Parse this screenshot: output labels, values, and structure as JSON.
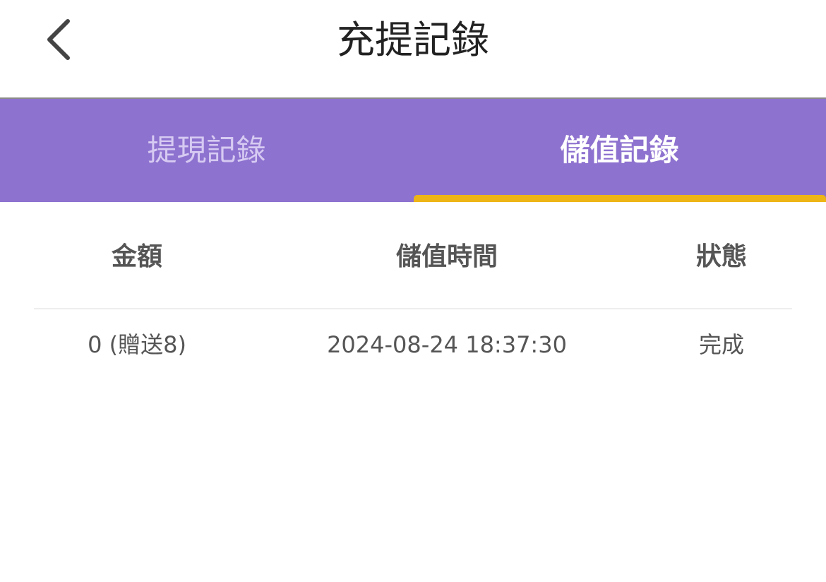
{
  "header": {
    "title": "充提記錄",
    "back_icon": "chevron-left-icon"
  },
  "tabs": [
    {
      "label": "提現記錄",
      "active": false
    },
    {
      "label": "儲值記錄",
      "active": true
    }
  ],
  "colors": {
    "tab_bar": "#8e72cf",
    "indicator": "#eeb516"
  },
  "table": {
    "columns": [
      "金額",
      "儲值時間",
      "狀態"
    ],
    "rows": [
      {
        "amount": "0 (贈送8)",
        "time": "2024-08-24 18:37:30",
        "status": "完成"
      }
    ]
  }
}
